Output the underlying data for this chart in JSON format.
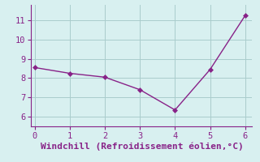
{
  "x": [
    0,
    1,
    2,
    3,
    4,
    5,
    6
  ],
  "y": [
    8.55,
    8.25,
    8.05,
    7.4,
    6.35,
    8.45,
    11.25
  ],
  "line_color": "#882288",
  "marker": "D",
  "marker_size": 3,
  "background_color": "#d8f0f0",
  "grid_color": "#aacccc",
  "xlabel": "Windchill (Refroidissement éolien,°C)",
  "xlabel_color": "#882288",
  "tick_color": "#882288",
  "spine_color": "#882288",
  "xlim": [
    -0.1,
    6.2
  ],
  "ylim": [
    5.5,
    11.8
  ],
  "xticks": [
    0,
    1,
    2,
    3,
    4,
    5,
    6
  ],
  "yticks": [
    6,
    7,
    8,
    9,
    10,
    11
  ],
  "font_size": 7.5,
  "xlabel_fontsize": 8,
  "line_width": 1.0
}
